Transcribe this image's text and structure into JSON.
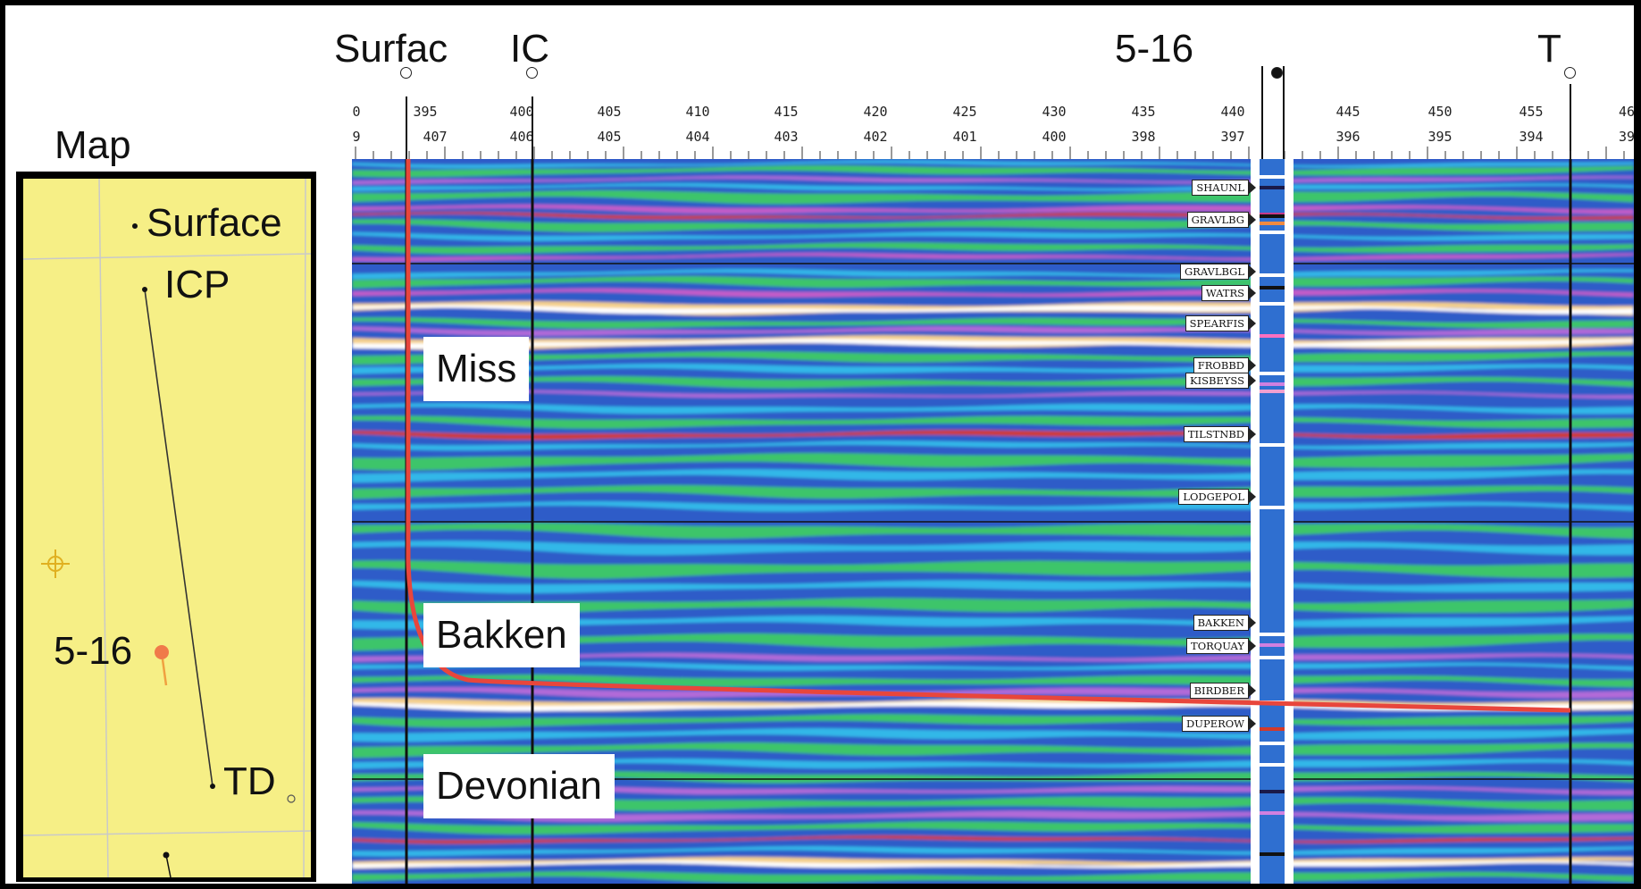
{
  "map": {
    "title": "Map",
    "labels": {
      "surface": "Surface",
      "icp": "ICP",
      "well": "5-16",
      "td": "TD"
    }
  },
  "section": {
    "well_labels": {
      "surface": "Surfac",
      "icp": "IC",
      "well": "5-16",
      "td": "T"
    },
    "trace_top": [
      "0",
      "395",
      "400",
      "405",
      "410",
      "415",
      "420",
      "425",
      "430",
      "435",
      "440",
      "445",
      "450",
      "455",
      "46"
    ],
    "trace_bottom": [
      "9",
      "407",
      "406",
      "405",
      "404",
      "403",
      "402",
      "401",
      "400",
      "398",
      "397",
      "396",
      "395",
      "394",
      "39"
    ],
    "zones": {
      "miss": "Miss",
      "bakken": "Bakken",
      "devonian": "Devonian"
    },
    "tops": [
      "SHAUNL",
      "GRAVLBG",
      "GRAVLBGL",
      "WATRS",
      "SPEARFIS",
      "FROBBD",
      "KISBEYSS",
      "TILSTNBD",
      "LODGEPOL",
      "BAKKEN",
      "TORQUAY",
      "BIRDBER",
      "DUPEROW"
    ],
    "colors": {
      "wellpath": "#e8463c",
      "map_bg": "#f6ef86",
      "well_dot": "#f07a4a"
    }
  }
}
